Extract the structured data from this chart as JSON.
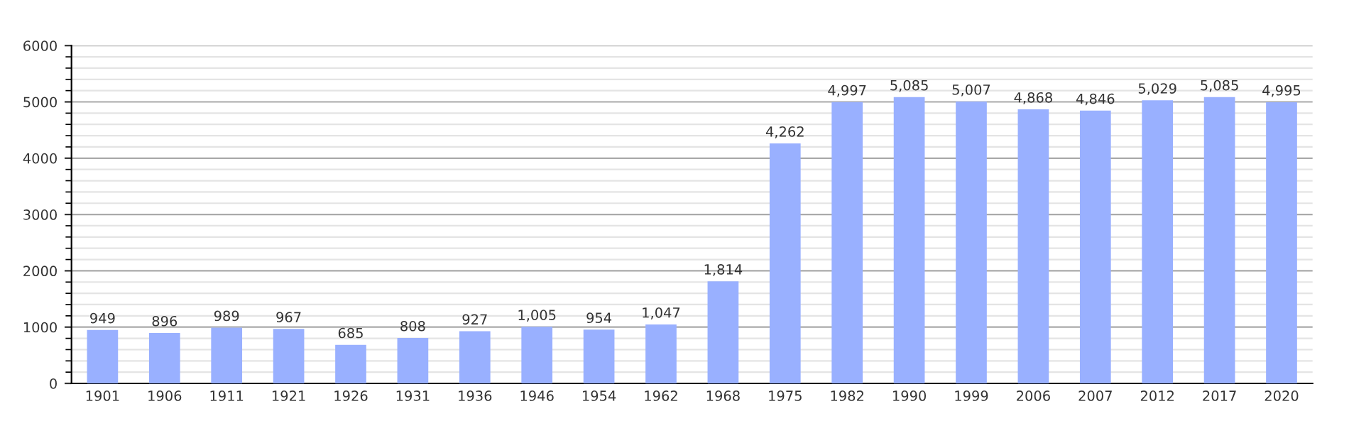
{
  "chart_data": {
    "type": "bar",
    "categories": [
      "1901",
      "1906",
      "1911",
      "1921",
      "1926",
      "1931",
      "1936",
      "1946",
      "1954",
      "1962",
      "1968",
      "1975",
      "1982",
      "1990",
      "1999",
      "2006",
      "2007",
      "2012",
      "2017",
      "2020"
    ],
    "values": [
      949,
      896,
      989,
      967,
      685,
      808,
      927,
      1005,
      954,
      1047,
      1814,
      4262,
      4997,
      5085,
      5007,
      4868,
      4846,
      5029,
      5085,
      4995
    ],
    "value_labels": [
      "949",
      "896",
      "989",
      "967",
      "685",
      "808",
      "927",
      "1,005",
      "954",
      "1,047",
      "1,814",
      "4,262",
      "4,997",
      "5,085",
      "5,007",
      "4,868",
      "4,846",
      "5,029",
      "5,085",
      "4,995"
    ],
    "color": "#99b0ff",
    "ylim": [
      0,
      6000
    ],
    "yticks": [
      0,
      1000,
      2000,
      3000,
      4000,
      5000,
      6000
    ],
    "grid": "y"
  }
}
